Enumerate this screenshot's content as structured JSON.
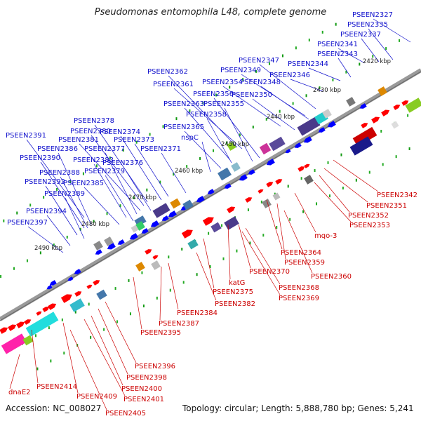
{
  "title": "Pseudomonas entomophila L48, complete genome",
  "footer": {
    "accession": "Accession: NC_008027",
    "topology": "Topology: circular; Length: 5,888,780 bp; Genes: 5,241"
  },
  "colors": {
    "forward": "#ff0000",
    "reverse": "#0000ff",
    "forward_label": "#cc0000",
    "reverse_label": "#1010cc",
    "backbone": "#888888",
    "tick": "#119911"
  },
  "kbp_markers": [
    {
      "kbp": 2420,
      "label": "2420 kbp"
    },
    {
      "kbp": 2430,
      "label": "2430 kbp"
    },
    {
      "kbp": 2440,
      "label": "2440 kbp"
    },
    {
      "kbp": 2450,
      "label": "2450 kbp"
    },
    {
      "kbp": 2460,
      "label": "2460 kbp"
    },
    {
      "kbp": 2470,
      "label": "2470 kbp"
    },
    {
      "kbp": 2480,
      "label": "2480 kbp"
    },
    {
      "kbp": 2490,
      "label": "2490 kbp"
    }
  ],
  "reverse_strand_labels": [
    "PSEEN2327",
    "PSEEN2335",
    "PSEEN2337",
    "PSEEN2341",
    "PSEEN2343",
    "PSEEN2344",
    "PSEEN2346",
    "PSEEN2347",
    "PSEEN2349",
    "PSEEN2348",
    "PSEEN2354",
    "PSEEN2350",
    "PSEEN2362",
    "PSEEN2361",
    "PSEEN2356",
    "PSEEN2363",
    "PSEEN2355",
    "PSEEN2358",
    "PSEEN2365",
    "nspC",
    "PSEEN2378",
    "PSEEN2380",
    "PSEEN2374",
    "PSEEN2391",
    "PSEEN2381",
    "PSEEN2373",
    "PSEEN2386",
    "PSEEN2377",
    "PSEEN2371",
    "PSEEN2390",
    "PSEEN2383",
    "PSEEN2376",
    "PSEEN2388",
    "PSEEN2379",
    "PSEEN2392",
    "PSEEN2385",
    "PSEEN2389",
    "PSEEN2394",
    "PSEEN2397"
  ],
  "forward_strand_labels": [
    "PSEEN2342",
    "PSEEN2351",
    "PSEEN2352",
    "PSEEN2353",
    "mqo-3",
    "PSEEN2364",
    "PSEEN2359",
    "PSEEN2360",
    "katG",
    "PSEEN2370",
    "PSEEN2368",
    "PSEEN2369",
    "PSEEN2375",
    "PSEEN2382",
    "PSEEN2384",
    "PSEEN2387",
    "PSEEN2395",
    "PSEEN2396",
    "PSEEN2398",
    "PSEEN2400",
    "PSEEN2401",
    "PSEEN2409",
    "PSEEN2405",
    "PSEEN2414",
    "dnaE2"
  ]
}
